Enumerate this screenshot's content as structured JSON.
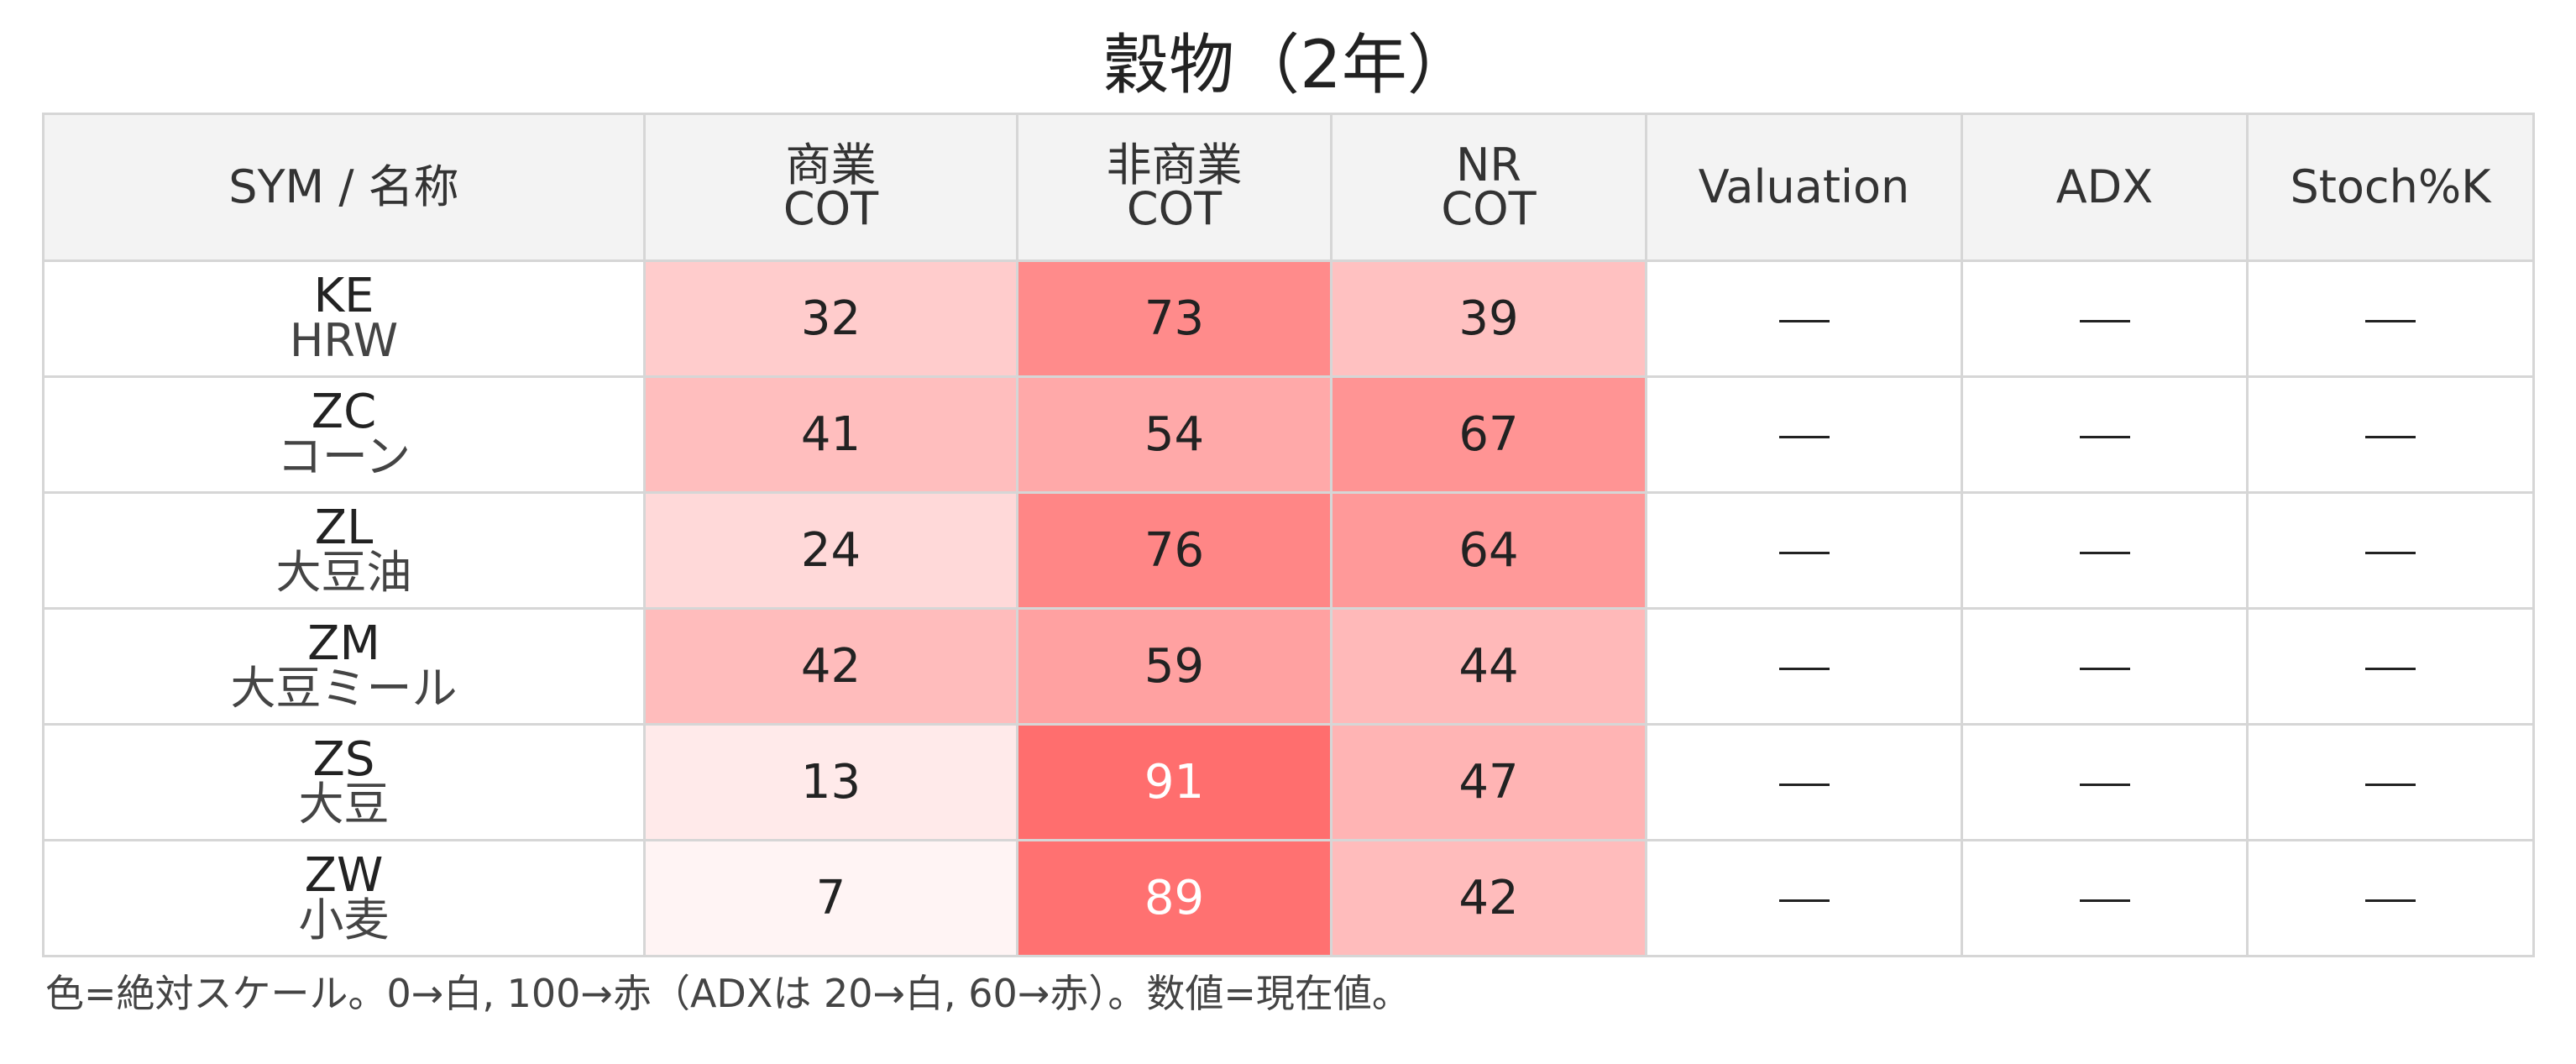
{
  "chart_data": {
    "type": "table",
    "title": "穀物（2年）",
    "columns": [
      {
        "key": "sym",
        "label": "SYM / 名称"
      },
      {
        "key": "commercial",
        "label": "商業\nCOT"
      },
      {
        "key": "noncommercial",
        "label": "非商業\nCOT"
      },
      {
        "key": "nr",
        "label": "NR\nCOT"
      },
      {
        "key": "valuation",
        "label": "Valuation"
      },
      {
        "key": "adx",
        "label": "ADX"
      },
      {
        "key": "stoch",
        "label": "Stoch%K"
      }
    ],
    "rows": [
      {
        "sym": "KE",
        "name": "HRW",
        "values": [
          32,
          73,
          39,
          null,
          null,
          null
        ]
      },
      {
        "sym": "ZC",
        "name": "コーン",
        "values": [
          41,
          54,
          67,
          null,
          null,
          null
        ]
      },
      {
        "sym": "ZL",
        "name": "大豆油",
        "values": [
          24,
          76,
          64,
          null,
          null,
          null
        ]
      },
      {
        "sym": "ZM",
        "name": "大豆ミール",
        "values": [
          42,
          59,
          44,
          null,
          null,
          null
        ]
      },
      {
        "sym": "ZS",
        "name": "大豆",
        "values": [
          13,
          91,
          47,
          null,
          null,
          null
        ]
      },
      {
        "sym": "ZW",
        "name": "小麦",
        "values": [
          7,
          89,
          42,
          null,
          null,
          null
        ]
      }
    ],
    "missing_symbol": "—",
    "color_scale": {
      "low_color": "#ffffff",
      "high_color": "#ff6060",
      "min": 0,
      "max": 100
    }
  },
  "footnote": "色=絶対スケール。0→白, 100→赤（ADXは 20→白, 60→赤）。数値=現在値。"
}
